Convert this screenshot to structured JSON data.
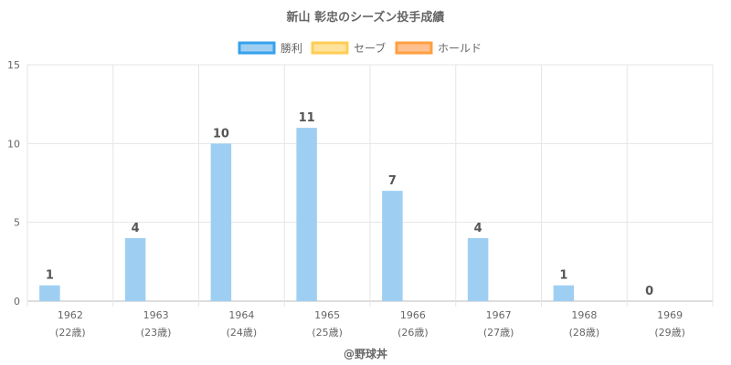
{
  "chart_data": {
    "type": "bar",
    "title": "新山 彰忠のシーズン投手成績",
    "categories": [
      "1962",
      "1963",
      "1964",
      "1965",
      "1966",
      "1967",
      "1968",
      "1969"
    ],
    "ages": [
      "(22歳)",
      "(23歳)",
      "(24歳)",
      "(25歳)",
      "(26歳)",
      "(27歳)",
      "(28歳)",
      "(29歳)"
    ],
    "series": [
      {
        "name": "勝利",
        "values": [
          1,
          4,
          10,
          11,
          7,
          4,
          1,
          0
        ],
        "color": "#9ecff3",
        "border": "#36a2eb"
      },
      {
        "name": "セーブ",
        "values": [
          0,
          0,
          0,
          0,
          0,
          0,
          0,
          0
        ],
        "color": "#ffe29b",
        "border": "#ffcd56"
      },
      {
        "name": "ホールド",
        "values": [
          0,
          0,
          0,
          0,
          0,
          0,
          0,
          0
        ],
        "color": "#ffc08f",
        "border": "#ff9f40"
      }
    ],
    "data_labels": [
      "1",
      "4",
      "10",
      "11",
      "7",
      "4",
      "1",
      "0"
    ],
    "ylim": [
      0,
      15
    ],
    "yticks": [
      "0",
      "5",
      "10",
      "15"
    ],
    "grid": true,
    "legend_position": "top"
  },
  "credit": "@野球丼"
}
